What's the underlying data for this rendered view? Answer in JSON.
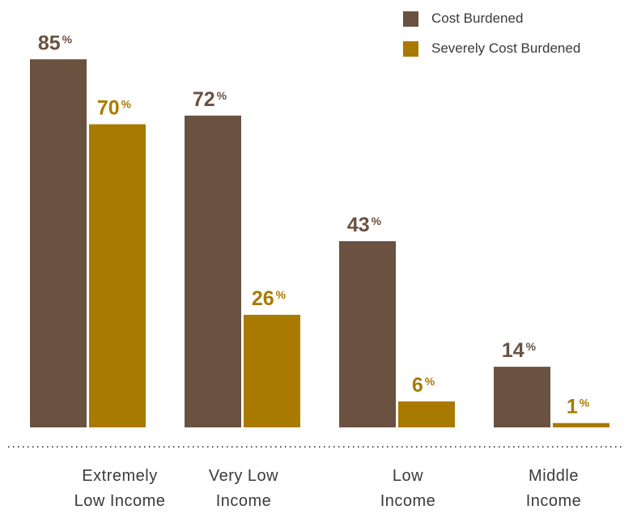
{
  "chart_data": {
    "type": "bar",
    "categories": [
      "Extremely Low Income",
      "Very Low Income",
      "Low Income",
      "Middle Income"
    ],
    "category_lines": [
      [
        "Extremely",
        "Low Income"
      ],
      [
        "Very Low",
        "Income"
      ],
      [
        "Low",
        "Income"
      ],
      [
        "Middle",
        "Income"
      ]
    ],
    "series": [
      {
        "name": "Cost Burdened",
        "values": [
          85,
          72,
          43,
          14
        ],
        "color": "#6a5140"
      },
      {
        "name": "Severely Cost Burdened",
        "values": [
          70,
          26,
          6,
          1
        ],
        "color": "#a97a00"
      }
    ],
    "value_suffix": "%",
    "ylim": [
      0,
      100
    ],
    "legend_position": "top-right",
    "baseline_style": "dotted"
  }
}
